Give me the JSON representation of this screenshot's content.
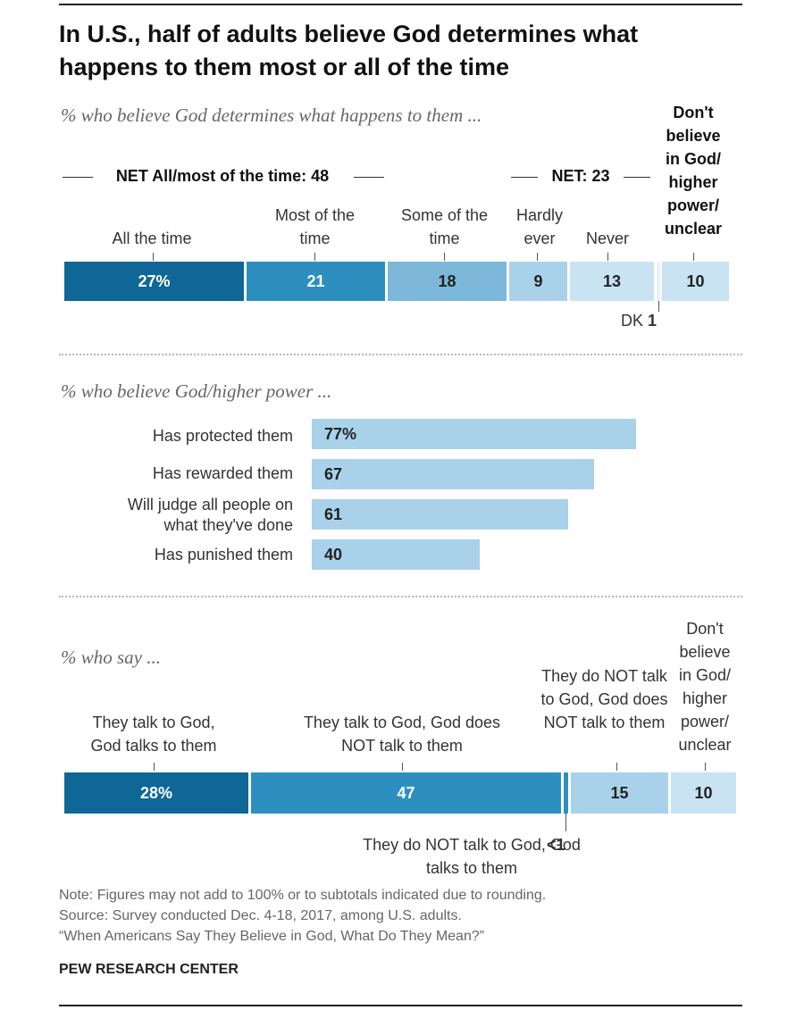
{
  "title": "In U.S., half of adults believe God determines what happens to them most or all of the time",
  "chart_data": [
    {
      "type": "bar",
      "subtitle": "% who believe God determines what happens to them ...",
      "net_labels": [
        "NET All/most of the time: 48",
        "NET: 23"
      ],
      "categories": [
        "All the time",
        "Most of the time",
        "Some of the time",
        "Hardly ever",
        "Never",
        "DK",
        "Don't believe in God/ higher power/ unclear"
      ],
      "values": [
        27,
        21,
        18,
        9,
        13,
        1,
        10
      ],
      "value_labels": [
        "27%",
        "21",
        "18",
        "9",
        "13",
        "1",
        "10"
      ],
      "colors": [
        "#0e6796",
        "#2d8fc0",
        "#7db7da",
        "#a9d2ea",
        "#c9e3f3",
        "#ffffff",
        "#c9e3f3"
      ]
    },
    {
      "type": "bar",
      "subtitle": "% who believe God/higher power ...",
      "categories": [
        "Has protected them",
        "Has rewarded them",
        "Will judge all people on what they've done",
        "Has punished them"
      ],
      "values": [
        77,
        67,
        61,
        40
      ],
      "value_labels": [
        "77%",
        "67",
        "61",
        "40"
      ],
      "color": "#a9d2ea"
    },
    {
      "type": "bar",
      "subtitle": "% who say ...",
      "categories": [
        "They talk to God, God talks to them",
        "They talk to God, God does NOT talk to them",
        "They do NOT talk to God, God talks to them",
        "They do NOT talk to God, God does NOT talk to them",
        "Don't believe in God/ higher power/ unclear"
      ],
      "values": [
        28,
        47,
        0.4,
        15,
        10
      ],
      "value_labels": [
        "28%",
        "47",
        "<1",
        "15",
        "10"
      ],
      "colors": [
        "#0e6796",
        "#2d8fc0",
        "#2d8fc0",
        "#a9d2ea",
        "#c9e3f3"
      ]
    }
  ],
  "note": "Note: Figures may not add to 100% or to subtotals indicated due to rounding.",
  "source": "Source: Survey conducted Dec. 4-18, 2017, among U.S. adults.",
  "report": "“When Americans Say They Believe in God, What Do They Mean?”",
  "org": "PEW RESEARCH CENTER"
}
